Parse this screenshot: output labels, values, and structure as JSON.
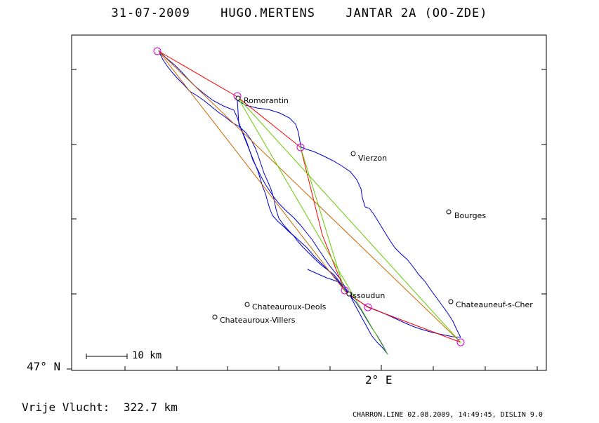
{
  "title": {
    "date": "31-07-2009",
    "pilot": "HUGO.MERTENS",
    "glider": "JANTAR 2A (OO-ZDE)"
  },
  "axes": {
    "lat_label": "47° N",
    "lon_label": "2° E"
  },
  "scale_bar": {
    "label": "10 km"
  },
  "places": [
    {
      "name": "Romorantin"
    },
    {
      "name": "Vierzon"
    },
    {
      "name": "Bourges"
    },
    {
      "name": "Issoudun"
    },
    {
      "name": "Chateauroux-Deols"
    },
    {
      "name": "Chateauroux-Villers"
    },
    {
      "name": "Chateauneuf-s-Cher"
    }
  ],
  "distance": {
    "label": "Vrije Vlucht:",
    "value": "322.7 km"
  },
  "footer": "CHARRON.LINE 02.08.2009, 14:49:45, DISLIN 9.0",
  "colors": {
    "track": "#0000cc",
    "leg_red": "#ff0000",
    "leg_orange": "#cc6600",
    "leg_green": "#66cc00",
    "turnpoint": "#cc00cc"
  }
}
